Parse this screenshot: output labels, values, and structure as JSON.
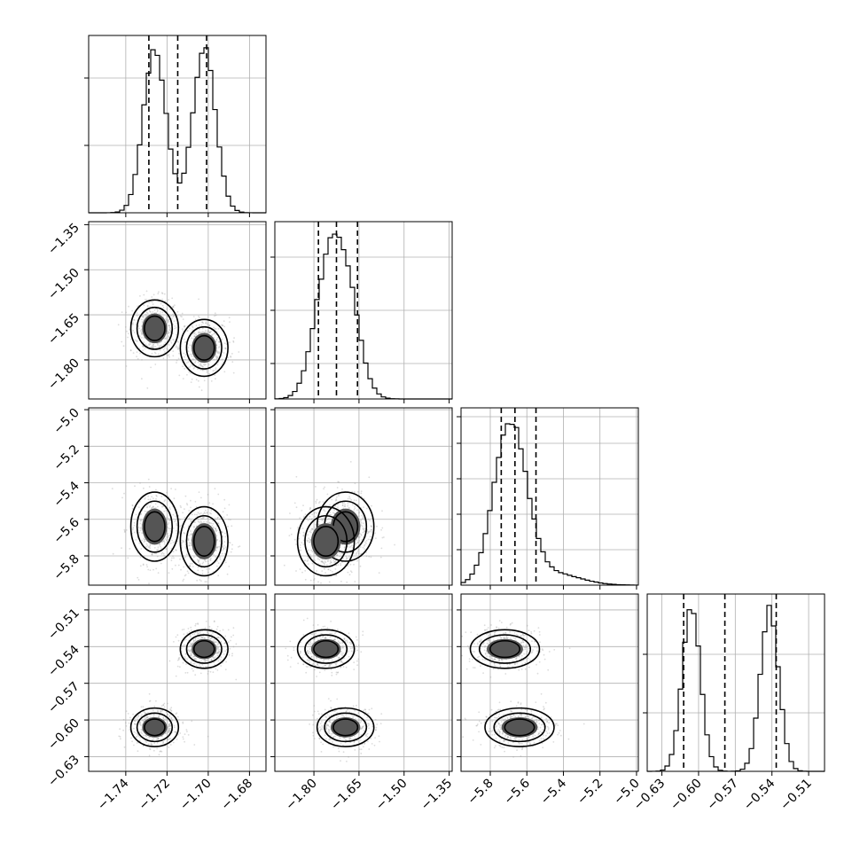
{
  "chart_data": {
    "type": "corner",
    "title": "",
    "grid": true,
    "quantiles_shown": true,
    "params": [
      {
        "range": [
          -1.758,
          -1.672
        ],
        "ticks": [
          -1.74,
          -1.72,
          -1.7,
          -1.68
        ],
        "tick_labels": [
          "−1.74",
          "−1.72",
          "−1.70",
          "−1.68"
        ],
        "quantiles": [
          -1.7288,
          -1.7148,
          -1.7008
        ],
        "modes": [
          {
            "mean": -1.726,
            "sd": 0.0055,
            "w": 0.5
          },
          {
            "mean": -1.702,
            "sd": 0.0055,
            "w": 0.5
          }
        ],
        "hist_ticks": [
          0.38,
          0.76
        ]
      },
      {
        "range": [
          -1.93,
          -1.34
        ],
        "ticks": [
          -1.8,
          -1.65,
          -1.5,
          -1.35
        ],
        "tick_labels": [
          "−1.80",
          "−1.65",
          "−1.50",
          "−1.35"
        ],
        "quantiles": [
          -1.785,
          -1.725,
          -1.655
        ],
        "modes": [
          {
            "mean": -1.695,
            "sd": 0.045,
            "w": 0.5
          },
          {
            "mean": -1.76,
            "sd": 0.045,
            "w": 0.5
          }
        ],
        "hist_ticks": [
          0.2,
          0.5,
          0.8
        ]
      },
      {
        "range": [
          -5.96,
          -4.99
        ],
        "ticks": [
          -5.8,
          -5.6,
          -5.4,
          -5.2,
          -5.0
        ],
        "tick_labels": [
          "−5.8",
          "−5.6",
          "−5.4",
          "−5.2",
          "−5.0"
        ],
        "quantiles": [
          -5.74,
          -5.665,
          -5.55
        ],
        "modes": [
          {
            "mean": -5.69,
            "sd": 0.09,
            "w": 0.9
          },
          {
            "mean": -5.45,
            "sd": 0.14,
            "w": 0.1
          }
        ],
        "hist_ticks": [
          0.2,
          0.4,
          0.6,
          0.8,
          0.95
        ]
      },
      {
        "range": [
          -0.642,
          -0.497
        ],
        "ticks": [
          -0.63,
          -0.6,
          -0.57,
          -0.54,
          -0.51
        ],
        "tick_labels": [
          "−0.63",
          "−0.60",
          "−0.57",
          "−0.54",
          "−0.51"
        ],
        "quantiles": [
          -0.6122,
          -0.5785,
          -0.5365
        ],
        "modes": [
          {
            "mean": -0.606,
            "sd": 0.0075,
            "w": 0.5
          },
          {
            "mean": -0.542,
            "sd": 0.0075,
            "w": 0.5
          }
        ],
        "hist_ticks": [
          0.33,
          0.66
        ]
      }
    ],
    "clusters": [
      {
        "weight": 0.5,
        "mean": [
          -1.726,
          -1.695,
          -5.64,
          -0.606
        ]
      },
      {
        "weight": 0.5,
        "mean": [
          -1.702,
          -1.76,
          -5.72,
          -0.542
        ]
      }
    ],
    "scatter_points_per_panel": 900
  }
}
